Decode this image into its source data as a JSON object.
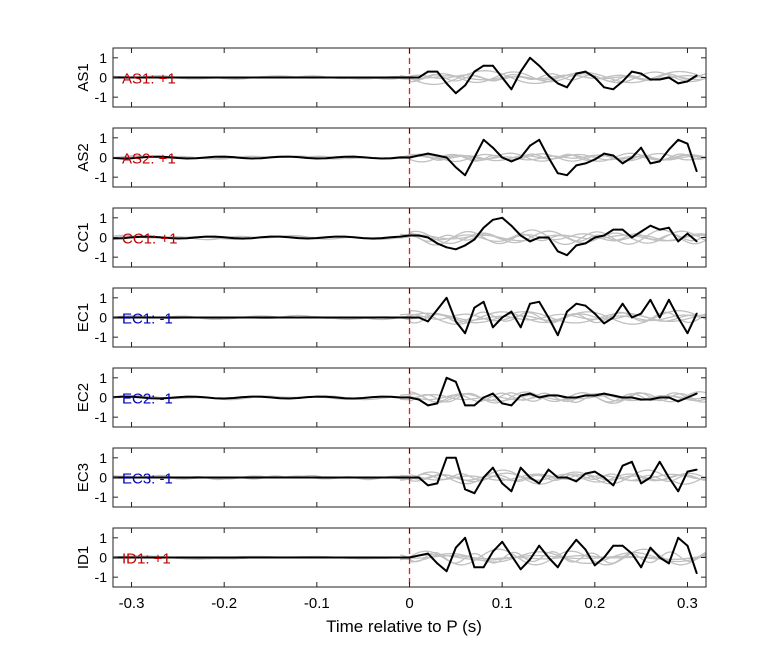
{
  "chart_data": {
    "type": "line",
    "xlabel": "Time relative to P (s)",
    "xlim": [
      -0.32,
      0.32
    ],
    "ylim": [
      -1.5,
      1.5
    ],
    "xticks": [
      -0.3,
      -0.2,
      -0.1,
      0,
      0.1,
      0.2,
      0.3
    ],
    "xtick_labels": [
      "-0.3",
      "-0.2",
      "-0.1",
      "0",
      "0.1",
      "0.2",
      "0.3"
    ],
    "yticks": [
      -1,
      0,
      1
    ],
    "ytick_labels": [
      "-1",
      "0",
      "1"
    ],
    "marker_line": {
      "x": 0,
      "color": "#e02020",
      "style": "dashed"
    },
    "colors": {
      "main": "#000000",
      "background_traces": "#c0c0c0",
      "positive_label": "#c00000",
      "negative_label": "#0000c0"
    },
    "panels": [
      {
        "ylabel": "AS1",
        "annotation": "AS1: +1",
        "polarity": "+1",
        "series": {
          "x": [
            0.0,
            0.01,
            0.02,
            0.03,
            0.04,
            0.05,
            0.06,
            0.07,
            0.08,
            0.09,
            0.1,
            0.11,
            0.12,
            0.13,
            0.14,
            0.15,
            0.16,
            0.17,
            0.18,
            0.19,
            0.2,
            0.21,
            0.22,
            0.23,
            0.24,
            0.25,
            0.26,
            0.27,
            0.28,
            0.29,
            0.3,
            0.31
          ],
          "y": [
            0.0,
            0.0,
            0.3,
            0.3,
            -0.3,
            -0.8,
            -0.4,
            0.3,
            0.6,
            0.6,
            0.0,
            -0.6,
            0.3,
            1.0,
            0.6,
            0.1,
            -0.3,
            -0.5,
            0.2,
            0.3,
            0.0,
            -0.5,
            -0.6,
            -0.2,
            0.3,
            0.2,
            -0.1,
            -0.1,
            0.0,
            -0.3,
            -0.2,
            0.1
          ]
        }
      },
      {
        "ylabel": "AS2",
        "annotation": "AS2: +1",
        "polarity": "+1",
        "series": {
          "x": [
            0.0,
            0.01,
            0.02,
            0.03,
            0.04,
            0.05,
            0.06,
            0.07,
            0.08,
            0.09,
            0.1,
            0.11,
            0.12,
            0.13,
            0.14,
            0.15,
            0.16,
            0.17,
            0.18,
            0.19,
            0.2,
            0.21,
            0.22,
            0.23,
            0.24,
            0.25,
            0.26,
            0.27,
            0.28,
            0.29,
            0.3,
            0.31
          ],
          "y": [
            0.0,
            0.1,
            0.2,
            0.1,
            0.0,
            -0.5,
            -0.9,
            0.0,
            0.9,
            0.5,
            0.0,
            -0.2,
            0.0,
            0.6,
            0.9,
            0.0,
            -0.8,
            -0.9,
            -0.4,
            -0.3,
            -0.1,
            0.2,
            0.1,
            -0.3,
            0.0,
            0.5,
            -0.3,
            -0.2,
            0.4,
            0.9,
            0.7,
            -0.7
          ]
        }
      },
      {
        "ylabel": "CC1",
        "annotation": "CC1: +1",
        "polarity": "+1",
        "series": {
          "x": [
            0.0,
            0.01,
            0.02,
            0.03,
            0.04,
            0.05,
            0.06,
            0.07,
            0.08,
            0.09,
            0.1,
            0.11,
            0.12,
            0.13,
            0.14,
            0.15,
            0.16,
            0.17,
            0.18,
            0.19,
            0.2,
            0.21,
            0.22,
            0.23,
            0.24,
            0.25,
            0.26,
            0.27,
            0.28,
            0.29,
            0.3,
            0.31
          ],
          "y": [
            0.1,
            0.1,
            0.0,
            -0.3,
            -0.5,
            -0.6,
            -0.4,
            -0.1,
            0.5,
            0.9,
            1.0,
            0.6,
            0.1,
            -0.2,
            0.0,
            0.0,
            -0.7,
            -0.9,
            -0.4,
            -0.3,
            0.0,
            0.1,
            0.4,
            0.4,
            0.0,
            0.3,
            0.6,
            0.4,
            0.5,
            -0.2,
            0.2,
            -0.2
          ]
        }
      },
      {
        "ylabel": "EC1",
        "annotation": "EC1: -1",
        "polarity": "-1",
        "series": {
          "x": [
            0.0,
            0.01,
            0.02,
            0.03,
            0.04,
            0.05,
            0.06,
            0.07,
            0.08,
            0.09,
            0.1,
            0.11,
            0.12,
            0.13,
            0.14,
            0.15,
            0.16,
            0.17,
            0.18,
            0.19,
            0.2,
            0.21,
            0.22,
            0.23,
            0.24,
            0.25,
            0.26,
            0.27,
            0.28,
            0.29,
            0.3,
            0.31
          ],
          "y": [
            0.0,
            0.0,
            -0.2,
            0.4,
            1.0,
            -0.2,
            -0.8,
            0.5,
            0.8,
            -0.5,
            0.0,
            0.3,
            -0.5,
            0.7,
            0.8,
            0.0,
            -0.9,
            0.3,
            0.7,
            0.6,
            0.2,
            -0.3,
            0.0,
            0.7,
            0.0,
            0.2,
            0.9,
            0.0,
            0.9,
            0.0,
            -0.8,
            0.2
          ]
        }
      },
      {
        "ylabel": "EC2",
        "annotation": "EC2: -1",
        "polarity": "-1",
        "series": {
          "x": [
            0.0,
            0.01,
            0.02,
            0.03,
            0.04,
            0.05,
            0.06,
            0.07,
            0.08,
            0.09,
            0.1,
            0.11,
            0.12,
            0.13,
            0.14,
            0.15,
            0.16,
            0.17,
            0.18,
            0.19,
            0.2,
            0.21,
            0.22,
            0.23,
            0.24,
            0.25,
            0.26,
            0.27,
            0.28,
            0.29,
            0.3,
            0.31
          ],
          "y": [
            0.0,
            -0.1,
            -0.4,
            -0.3,
            1.0,
            0.8,
            -0.4,
            -0.4,
            0.0,
            0.2,
            -0.3,
            -0.4,
            0.1,
            0.2,
            0.0,
            0.1,
            0.1,
            0.0,
            0.0,
            0.1,
            0.1,
            0.2,
            0.1,
            0.0,
            0.0,
            -0.1,
            -0.1,
            0.0,
            0.0,
            -0.2,
            0.0,
            0.2
          ]
        }
      },
      {
        "ylabel": "EC3",
        "annotation": "EC3: -1",
        "polarity": "-1",
        "series": {
          "x": [
            0.0,
            0.01,
            0.02,
            0.03,
            0.04,
            0.05,
            0.06,
            0.07,
            0.08,
            0.09,
            0.1,
            0.11,
            0.12,
            0.13,
            0.14,
            0.15,
            0.16,
            0.17,
            0.18,
            0.19,
            0.2,
            0.21,
            0.22,
            0.23,
            0.24,
            0.25,
            0.26,
            0.27,
            0.28,
            0.29,
            0.3,
            0.31
          ],
          "y": [
            0.0,
            0.0,
            -0.4,
            -0.3,
            1.0,
            1.0,
            -0.6,
            -0.8,
            0.0,
            0.5,
            -0.3,
            -0.7,
            0.5,
            0.0,
            -0.3,
            0.4,
            0.0,
            0.0,
            -0.2,
            0.2,
            0.3,
            0.0,
            -0.4,
            0.6,
            0.8,
            -0.3,
            0.0,
            0.8,
            0.0,
            -0.7,
            0.3,
            0.4
          ]
        }
      },
      {
        "ylabel": "ID1",
        "annotation": "ID1: +1",
        "polarity": "+1",
        "series": {
          "x": [
            0.0,
            0.01,
            0.02,
            0.03,
            0.04,
            0.05,
            0.06,
            0.07,
            0.08,
            0.09,
            0.1,
            0.11,
            0.12,
            0.13,
            0.14,
            0.15,
            0.16,
            0.17,
            0.18,
            0.19,
            0.2,
            0.21,
            0.22,
            0.23,
            0.24,
            0.25,
            0.26,
            0.27,
            0.28,
            0.29,
            0.3,
            0.31
          ],
          "y": [
            0.0,
            0.1,
            0.2,
            -0.3,
            -0.7,
            0.5,
            1.0,
            -0.5,
            -0.5,
            0.3,
            0.8,
            0.1,
            -0.6,
            -0.1,
            0.6,
            0.0,
            -0.5,
            0.3,
            0.9,
            0.4,
            -0.4,
            0.0,
            0.6,
            0.6,
            0.2,
            -0.5,
            0.5,
            0.0,
            -0.3,
            1.0,
            0.6,
            -0.8
          ]
        }
      }
    ]
  }
}
